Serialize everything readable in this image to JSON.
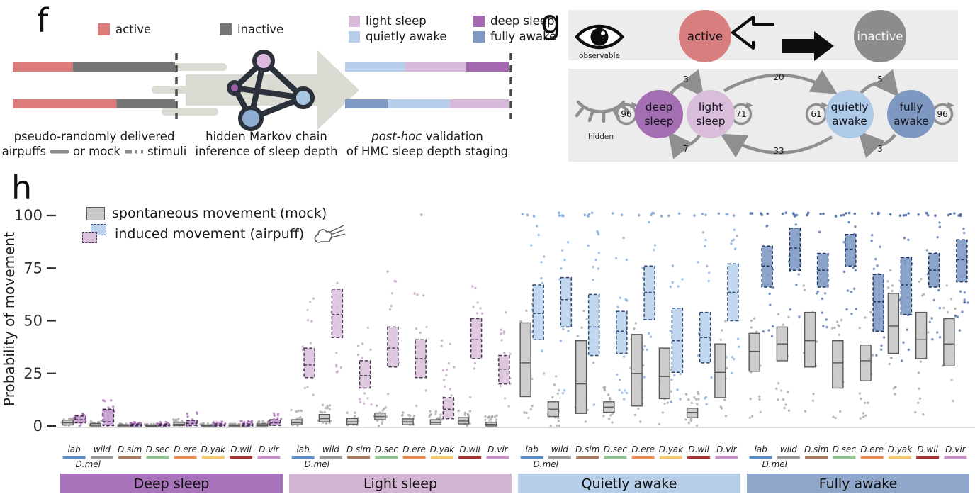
{
  "panel_f": {
    "label": "f",
    "legend": [
      {
        "label": "active"
      },
      {
        "label": "inactive"
      }
    ],
    "legend2": [
      {
        "label": "light sleep"
      },
      {
        "label": "quietly awake"
      },
      {
        "label": "deep sleep"
      },
      {
        "label": "fully awake"
      }
    ],
    "colors": {
      "active": "#dd7b7b",
      "inactive": "#757575",
      "light_sleep": "#d7bada",
      "quietly_awake": "#b7cfea",
      "deep_sleep": "#a368b0",
      "fully_awake": "#8099c4"
    },
    "input_bars": [
      {
        "segments": [
          {
            "color_key": "active",
            "frac": 0.37
          },
          {
            "color_key": "inactive",
            "frac": 0.63
          }
        ]
      },
      {
        "segments": [
          {
            "color_key": "active",
            "frac": 0.64
          },
          {
            "color_key": "inactive",
            "frac": 0.36
          }
        ]
      }
    ],
    "validation_bars": [
      {
        "segments": [
          {
            "color_key": "quietly_awake",
            "frac": 0.37
          },
          {
            "color_key": "light_sleep",
            "frac": 0.37
          },
          {
            "color_key": "deep_sleep",
            "frac": 0.26
          }
        ]
      },
      {
        "segments": [
          {
            "color_key": "fully_awake",
            "frac": 0.26
          },
          {
            "color_key": "quietly_awake",
            "frac": 0.38
          },
          {
            "color_key": "light_sleep",
            "frac": 0.36
          }
        ]
      }
    ],
    "caption_left1": "pseudo-randomly delivered",
    "caption_left2a": "airpuffs",
    "caption_left2b": "or mock",
    "caption_left2c": "stimuli",
    "caption_mid1": "hidden Markov chain",
    "caption_mid2": "inference of sleep depth",
    "caption_right1a": "post-hoc",
    "caption_right1b": "validation",
    "caption_right2": "of HMC sleep depth staging"
  },
  "panel_g": {
    "label": "g",
    "observable_label": "observable",
    "hidden_label": "hidden",
    "active": "active",
    "inactive": "inactive",
    "colors": {
      "active": "#d97e7e",
      "inactive": "#8c8c8c"
    },
    "states": [
      {
        "l1": "deep",
        "l2": "sleep",
        "color": "#a36fb2"
      },
      {
        "l1": "light",
        "l2": "sleep",
        "color": "#d9bedb"
      },
      {
        "l1": "quietly",
        "l2": "awake",
        "color": "#aecae7"
      },
      {
        "l1": "fully",
        "l2": "awake",
        "color": "#7e98c2"
      }
    ],
    "loops": [
      "96",
      "71",
      "61",
      "96"
    ],
    "forward": [
      "3",
      "20",
      "5"
    ],
    "backward": [
      "7",
      "33",
      "3"
    ]
  },
  "panel_h": {
    "label": "h",
    "legend_mock": "spontaneous movement (mock)",
    "legend_air": "induced movement (airpuff)"
  },
  "chart_data": {
    "type": "boxplot",
    "title": "",
    "ylabel": "Probability of movement",
    "yticks": [
      0,
      25,
      50,
      75,
      100
    ],
    "ylim": [
      0,
      100
    ],
    "legend": [
      "spontaneous movement (mock)",
      "induced movement (airpuff)"
    ],
    "species": [
      "lab",
      "wild",
      "D.sim",
      "D.sec",
      "D.ere",
      "D.yak",
      "D.wil",
      "D.vir"
    ],
    "species_colors": [
      "#5b8fc9",
      "#9a9a9a",
      "#aa7a61",
      "#8ec58e",
      "#ec8c4e",
      "#f3c568",
      "#a83030",
      "#c98fc9"
    ],
    "dmel_label": "D.mel",
    "mock_style": {
      "fill": "#c9c9c9",
      "edge": "#5a5a5a",
      "dot": "#9f9f9f"
    },
    "groups": [
      {
        "label": "Deep sleep",
        "band_color": "#a873ba",
        "fill": "#c49ccf",
        "edge": "#3f2b4f",
        "dot": "#a96fb6",
        "mock": [
          [
            0.5,
            1.5,
            2.8
          ],
          [
            0,
            0.5,
            1.2
          ],
          [
            0,
            0.2,
            0.6
          ],
          [
            0,
            0.1,
            0.4
          ],
          [
            0.2,
            0.8,
            1.8
          ],
          [
            0,
            0.1,
            0.5
          ],
          [
            0,
            0.1,
            0.5
          ],
          [
            0,
            0.4,
            1
          ]
        ],
        "air": [
          [
            1.5,
            3,
            4.8
          ],
          [
            0.2,
            2,
            8
          ],
          [
            0,
            0.3,
            0.9
          ],
          [
            0,
            0.3,
            0.9
          ],
          [
            0.3,
            1.2,
            2.6
          ],
          [
            0,
            0.3,
            1
          ],
          [
            0,
            0.3,
            1
          ],
          [
            0.3,
            1.5,
            3
          ]
        ],
        "mock_dots": [
          [
            0,
            4
          ],
          [
            0,
            2.5
          ],
          [
            0,
            1.5
          ],
          [
            0,
            1
          ],
          [
            0,
            3.5
          ],
          [
            0,
            1.2
          ],
          [
            0,
            1.2
          ],
          [
            0,
            2.5
          ]
        ],
        "air_dots": [
          [
            0,
            8
          ],
          [
            0,
            13
          ],
          [
            0,
            2
          ],
          [
            0,
            2
          ],
          [
            0,
            7
          ],
          [
            0,
            2
          ],
          [
            0,
            2.5
          ],
          [
            0,
            6.5
          ]
        ],
        "top_dots": [
          0,
          0,
          0,
          0,
          0,
          0,
          0,
          0
        ]
      },
      {
        "label": "Light sleep",
        "band_color": "#d3b4d3",
        "fill": "#dcc3dd",
        "edge": "#4a3a55",
        "dot": "#c3a0c6",
        "mock": [
          [
            0.6,
            1.5,
            3
          ],
          [
            2,
            3.5,
            5.5
          ],
          [
            0.8,
            2,
            3.6
          ],
          [
            3,
            4.5,
            6.2
          ],
          [
            0.6,
            2,
            3.4
          ],
          [
            0.6,
            1.6,
            3
          ],
          [
            1,
            2.4,
            4
          ],
          [
            0,
            0.8,
            1.8
          ]
        ],
        "air": [
          [
            23,
            29,
            37
          ],
          [
            42,
            53,
            65
          ],
          [
            18,
            24,
            31
          ],
          [
            28,
            37,
            47
          ],
          [
            23,
            32,
            41
          ],
          [
            3.5,
            8,
            13.5
          ],
          [
            32,
            41,
            51
          ],
          [
            20,
            27,
            33.5
          ]
        ],
        "mock_dots": [
          [
            0,
            8
          ],
          [
            0,
            10
          ],
          [
            0,
            7
          ],
          [
            0,
            10
          ],
          [
            0,
            7
          ],
          [
            0,
            7
          ],
          [
            0,
            8
          ],
          [
            0,
            5
          ]
        ],
        "air_dots": [
          [
            12,
            62
          ],
          [
            25,
            78
          ],
          [
            8,
            50
          ],
          [
            15,
            75
          ],
          [
            5,
            72
          ],
          [
            0,
            45
          ],
          [
            12,
            68
          ],
          [
            6,
            55
          ]
        ],
        "top_dots": [
          0,
          1,
          0,
          0,
          1,
          0,
          0,
          0
        ]
      },
      {
        "label": "Quietly awake",
        "band_color": "#b7cfe9",
        "fill": "#bdd3ec",
        "edge": "#2e4d7b",
        "dot": "#7fa9dc",
        "mock": [
          [
            14,
            30,
            49
          ],
          [
            4.5,
            8,
            11.5
          ],
          [
            6,
            20,
            40.5
          ],
          [
            6.5,
            9,
            11.5
          ],
          [
            9.5,
            25,
            43.5
          ],
          [
            13,
            23.5,
            37
          ],
          [
            4,
            6.5,
            8.5
          ],
          [
            13.5,
            25.5,
            39
          ]
        ],
        "air": [
          [
            41,
            53.5,
            67
          ],
          [
            47,
            60,
            70.5
          ],
          [
            33.5,
            47,
            62.5
          ],
          [
            34.5,
            45,
            54.5
          ],
          [
            50.5,
            63.5,
            76
          ],
          [
            25.5,
            40.5,
            56
          ],
          [
            30,
            42,
            54
          ],
          [
            50,
            63.5,
            77
          ]
        ],
        "mock_dots": [
          [
            0,
            62
          ],
          [
            0,
            25
          ],
          [
            0,
            55
          ],
          [
            0,
            20
          ],
          [
            0,
            55
          ],
          [
            0,
            50
          ],
          [
            0,
            18
          ],
          [
            0,
            52
          ]
        ],
        "air_dots": [
          [
            10,
            96
          ],
          [
            15,
            96
          ],
          [
            8,
            96
          ],
          [
            10,
            92
          ],
          [
            20,
            97
          ],
          [
            5,
            96
          ],
          [
            8,
            95
          ],
          [
            18,
            97
          ]
        ],
        "top_dots": [
          3,
          4,
          4,
          2,
          4,
          3,
          3,
          4
        ]
      },
      {
        "label": "Fully awake",
        "band_color": "#8fa7cb",
        "fill": "#8099c4",
        "edge": "#1e3560",
        "dot": "#4b6fa8",
        "mock": [
          [
            26,
            35.5,
            44
          ],
          [
            31,
            39,
            47
          ],
          [
            28,
            40.5,
            54
          ],
          [
            18,
            30,
            40.5
          ],
          [
            21.5,
            31,
            38.5
          ],
          [
            34.5,
            47.5,
            63
          ],
          [
            32,
            41,
            54
          ],
          [
            28.5,
            39,
            51
          ]
        ],
        "air": [
          [
            66,
            76,
            85.5
          ],
          [
            74,
            84.5,
            94
          ],
          [
            66,
            74,
            82
          ],
          [
            76,
            84,
            91
          ],
          [
            45,
            59,
            72
          ],
          [
            53,
            67,
            80
          ],
          [
            66,
            74,
            82
          ],
          [
            68.5,
            79,
            88.5
          ]
        ],
        "mock_dots": [
          [
            3,
            60
          ],
          [
            5,
            65
          ],
          [
            5,
            70
          ],
          [
            2,
            55
          ],
          [
            2,
            55
          ],
          [
            8,
            75
          ],
          [
            5,
            70
          ],
          [
            5,
            68
          ]
        ],
        "air_dots": [
          [
            40,
            97
          ],
          [
            50,
            98
          ],
          [
            45,
            97
          ],
          [
            50,
            97
          ],
          [
            25,
            97
          ],
          [
            30,
            97
          ],
          [
            40,
            97
          ],
          [
            45,
            98
          ]
        ],
        "top_dots": [
          5,
          6,
          5,
          6,
          4,
          5,
          5,
          6
        ]
      }
    ]
  }
}
